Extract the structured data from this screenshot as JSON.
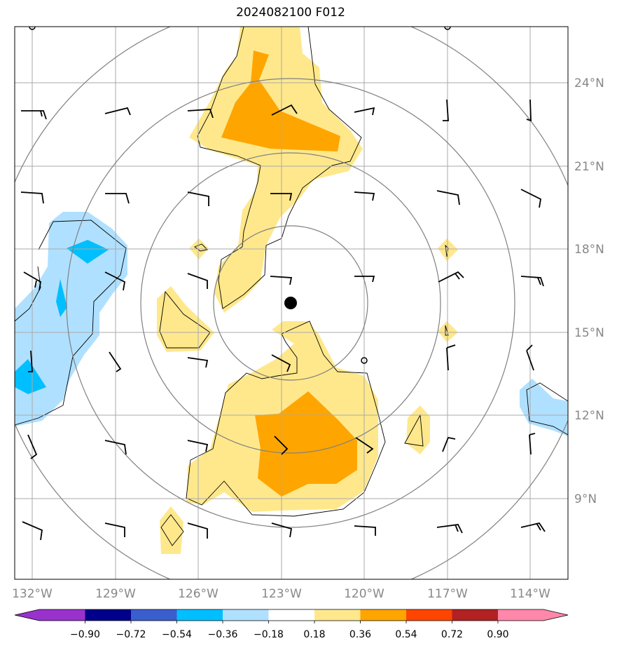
{
  "title": "2024082100 F012",
  "map": {
    "lon_labels": [
      "132°W",
      "129°W",
      "126°W",
      "123°W",
      "120°W",
      "117°W",
      "114°W"
    ],
    "lat_labels": [
      "24°N",
      "21°N",
      "18°N",
      "15°N",
      "12°N",
      "9°N"
    ],
    "storm_center": "filled black dot",
    "range_rings": 4
  },
  "colorbar": {
    "labels": [
      "−0.90",
      "−0.72",
      "−0.54",
      "−0.36",
      "−0.18",
      "0.18",
      "0.36",
      "0.54",
      "0.72",
      "0.90"
    ],
    "colors": [
      "#9932cc",
      "#00008b",
      "#3a5fcd",
      "#00bfff",
      "#b0e0ff",
      "#ffffff",
      "#ffe88c",
      "#ffa500",
      "#ff4500",
      "#b22222",
      "#ff88aa"
    ]
  }
}
